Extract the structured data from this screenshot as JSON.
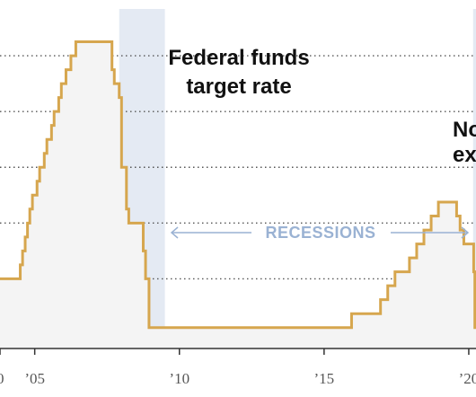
{
  "chart_data": {
    "type": "line",
    "step": true,
    "title": "",
    "annotations": {
      "series_label_lines": [
        "Federal funds",
        "target rate"
      ],
      "cut_off_label_lines": [
        "No",
        "ex"
      ],
      "recessions_label": "RECESSIONS"
    },
    "xlabel": "",
    "ylabel": "",
    "xlim": [
      2003.8,
      2020.25
    ],
    "ylim": [
      -0.25,
      6.0
    ],
    "x_ticks": [
      {
        "value": 2003.8,
        "label": "0"
      },
      {
        "value": 2005.0,
        "label": "’05"
      },
      {
        "value": 2010.0,
        "label": "’10"
      },
      {
        "value": 2015.0,
        "label": "’15"
      },
      {
        "value": 2020.0,
        "label": "’20"
      }
    ],
    "grid": {
      "y": true,
      "style": "dotted",
      "values": [
        1,
        2,
        3,
        4,
        5
      ]
    },
    "recessions": [
      {
        "start": 2007.92,
        "end": 2009.5
      },
      {
        "start": 2020.15,
        "end": 2020.5
      }
    ],
    "colors": {
      "line": "#d6a64e",
      "area_fill": "#f4f4f4",
      "recession": "#e4eaf3",
      "recession_label": "#9ab2d3",
      "grid": "#555555",
      "axis": "#333333"
    },
    "series": [
      {
        "values": [
          [
            2003.8,
            1.0
          ],
          [
            2004.5,
            1.25
          ],
          [
            2004.58,
            1.5
          ],
          [
            2004.67,
            1.75
          ],
          [
            2004.75,
            2.0
          ],
          [
            2004.83,
            2.25
          ],
          [
            2004.92,
            2.5
          ],
          [
            2005.08,
            2.75
          ],
          [
            2005.17,
            3.0
          ],
          [
            2005.33,
            3.25
          ],
          [
            2005.42,
            3.5
          ],
          [
            2005.58,
            3.75
          ],
          [
            2005.67,
            4.0
          ],
          [
            2005.83,
            4.25
          ],
          [
            2005.92,
            4.5
          ],
          [
            2006.08,
            4.75
          ],
          [
            2006.25,
            5.0
          ],
          [
            2006.42,
            5.25
          ],
          [
            2007.67,
            4.75
          ],
          [
            2007.75,
            4.5
          ],
          [
            2007.92,
            4.25
          ],
          [
            2008.0,
            3.0
          ],
          [
            2008.17,
            2.25
          ],
          [
            2008.25,
            2.0
          ],
          [
            2008.33,
            2.0
          ],
          [
            2008.75,
            1.5
          ],
          [
            2008.83,
            1.0
          ],
          [
            2008.95,
            0.125
          ],
          [
            2015.95,
            0.375
          ],
          [
            2016.95,
            0.625
          ],
          [
            2017.2,
            0.875
          ],
          [
            2017.45,
            1.125
          ],
          [
            2017.95,
            1.375
          ],
          [
            2018.2,
            1.625
          ],
          [
            2018.45,
            1.875
          ],
          [
            2018.7,
            2.125
          ],
          [
            2018.95,
            2.375
          ],
          [
            2019.58,
            2.125
          ],
          [
            2019.7,
            1.875
          ],
          [
            2019.83,
            1.625
          ],
          [
            2020.17,
            1.125
          ],
          [
            2020.21,
            0.125
          ]
        ]
      }
    ]
  }
}
